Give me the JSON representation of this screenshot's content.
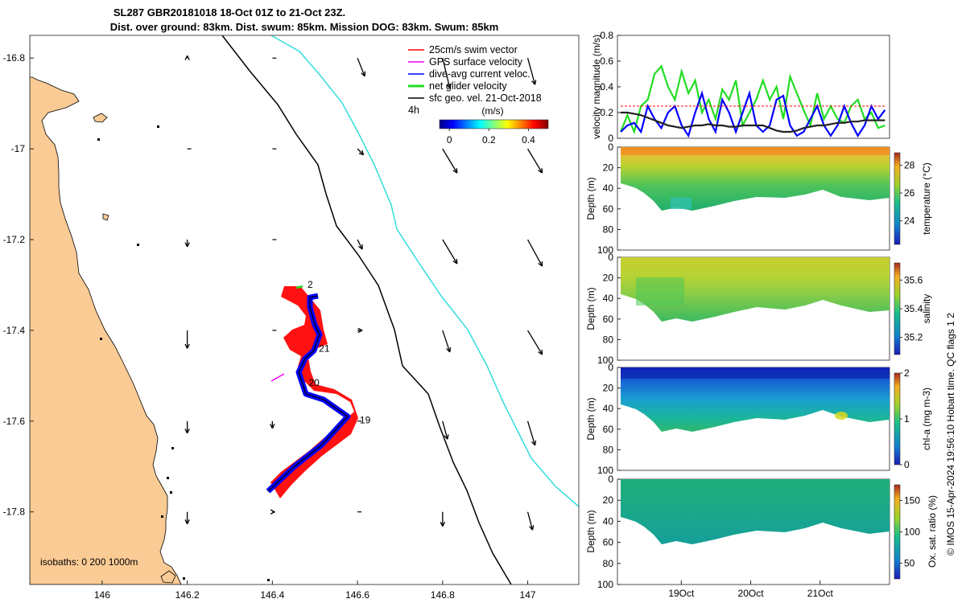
{
  "title": {
    "line1": "SL287 GBR20181018 18-Oct 01Z to 21-Oct 23Z.",
    "line2": "Dist. over ground: 83km. Dist. swum: 85km. Mission DOG: 83km. Swum: 85km"
  },
  "footer": {
    "note": "© IMOS 15-Apr-2024 19:56:10 Hobart time. QC flags 1  2"
  },
  "colors": {
    "land": "#fbcb95",
    "glider_track": "#0000ff",
    "swim_vector": "#ff0000",
    "gps_velocity": "#ff00ff",
    "net_velocity": "#22dd22",
    "geostrophic": "#000000",
    "isobath_200": "#000000",
    "isobath_1000": "#33dddd"
  },
  "chart_data": [
    {
      "id": "map",
      "type": "scatter",
      "title": "Glider track and velocity vectors",
      "xlim": [
        145.83,
        147.12
      ],
      "ylim": [
        -17.96,
        -16.75
      ],
      "xticks": [
        146,
        146.2,
        146.4,
        146.6,
        146.8,
        147
      ],
      "xtick_labels": [
        "146",
        "146.2",
        "146.4",
        "146.6",
        "146.8",
        "147"
      ],
      "yticks": [
        -16.8,
        -17,
        -17.2,
        -17.4,
        -17.6,
        -17.8
      ],
      "ytick_labels": [
        "-16.8",
        "-17",
        "-17.2",
        "-17.4",
        "-17.6",
        "-17.8"
      ],
      "legend": {
        "placement": "top-right",
        "entries": [
          "25cm/s swim vector",
          "GPS surface velocity",
          "dive-avg current veloc.",
          "net glider velocity",
          "sfc geo. vel. 21-Oct-2018"
        ],
        "time_label": "4h"
      },
      "colorbar": {
        "label": "(m/s)",
        "ticks": [
          0,
          0.2,
          0.4
        ],
        "tick_labels": [
          "0",
          "0.2",
          "0.4"
        ],
        "range": [
          -0.05,
          0.5
        ]
      },
      "isobaths_label": "isobaths: 0   200  1000m",
      "track": [
        [
          146.39,
          -17.77
        ],
        [
          146.44,
          -17.72
        ],
        [
          146.53,
          -17.65
        ],
        [
          146.58,
          -17.6
        ],
        [
          146.53,
          -17.56
        ],
        [
          146.44,
          -17.55
        ],
        [
          146.43,
          -17.49
        ],
        [
          146.48,
          -17.45
        ],
        [
          146.48,
          -17.42
        ],
        [
          146.46,
          -17.38
        ],
        [
          146.46,
          -17.33
        ],
        [
          146.48,
          -17.32
        ]
      ],
      "day_labels": [
        {
          "label": "21",
          "lon": 146.522,
          "lat": -17.447
        },
        {
          "label": "20",
          "lon": 146.498,
          "lat": -17.522
        },
        {
          "label": "19",
          "lon": 146.618,
          "lat": -17.605
        },
        {
          "label": "2",
          "lon": 146.489,
          "lat": -17.306
        }
      ],
      "geo_vectors": {
        "lons": [
          146.2,
          146.4,
          146.6,
          146.8,
          147.0
        ],
        "lats": [
          -16.8,
          -17.0,
          -17.2,
          -17.4,
          -17.6,
          -17.8
        ],
        "u": [
          [
            0.0,
            0.0,
            0.06,
            0.06,
            0.06
          ],
          [
            0.0,
            0.0,
            0.05,
            0.12,
            0.12
          ],
          [
            0.0,
            0.0,
            0.04,
            0.12,
            0.12
          ],
          [
            0.0,
            0.0,
            0.04,
            0.06,
            0.12
          ],
          [
            0.0,
            0.0,
            0.0,
            0.04,
            0.06
          ],
          [
            0.0,
            0.02,
            0.0,
            0.0,
            0.04
          ]
        ],
        "v": [
          [
            0.02,
            0.0,
            -0.15,
            -0.25,
            -0.22
          ],
          [
            0.0,
            0.0,
            -0.05,
            -0.2,
            -0.2
          ],
          [
            -0.06,
            0.0,
            -0.08,
            -0.2,
            -0.22
          ],
          [
            -0.15,
            0.0,
            0.0,
            -0.18,
            -0.2
          ],
          [
            -0.1,
            -0.06,
            0.0,
            -0.15,
            -0.2
          ],
          [
            -0.1,
            0.0,
            0.0,
            -0.12,
            -0.15
          ]
        ]
      }
    },
    {
      "id": "velocity",
      "type": "line",
      "ylabel": "velocity magnitude (m/s)",
      "ylim": [
        0,
        0.8
      ],
      "yticks": [
        0,
        0.2,
        0.4,
        0.6,
        0.8
      ],
      "ytick_labels": [
        "0",
        "0.2",
        "0.4",
        "0.6",
        "0.8"
      ],
      "x_days": [
        0.0,
        0.1,
        0.2,
        0.3,
        0.4,
        0.5,
        0.6,
        0.7,
        0.8,
        0.9,
        1.0,
        1.1,
        1.2,
        1.3,
        1.4,
        1.5,
        1.6,
        1.7,
        1.8,
        1.9,
        2.0,
        2.1,
        2.2,
        2.3,
        2.4,
        2.5,
        2.6,
        2.7,
        2.8,
        2.9,
        3.0,
        3.1,
        3.2,
        3.3,
        3.4,
        3.5,
        3.6,
        3.7,
        3.8,
        3.9
      ],
      "series": [
        {
          "name": "net glider velocity",
          "color": "#22dd22",
          "values": [
            0.05,
            0.18,
            0.05,
            0.25,
            0.3,
            0.5,
            0.56,
            0.4,
            0.3,
            0.52,
            0.35,
            0.45,
            0.2,
            0.3,
            0.15,
            0.38,
            0.3,
            0.45,
            0.1,
            0.2,
            0.3,
            0.45,
            0.3,
            0.4,
            0.15,
            0.48,
            0.35,
            0.22,
            0.1,
            0.35,
            0.15,
            0.25,
            0.15,
            0.12,
            0.25,
            0.3,
            0.15,
            0.2,
            0.08,
            0.1
          ]
        },
        {
          "name": "dive-avg current veloc.",
          "color": "#0000ff",
          "values": [
            0.05,
            0.1,
            0.12,
            0.05,
            0.25,
            0.15,
            0.08,
            0.2,
            0.25,
            0.1,
            0.02,
            0.2,
            0.35,
            0.15,
            0.05,
            0.3,
            0.2,
            0.05,
            0.2,
            0.35,
            0.1,
            0.05,
            0.1,
            0.3,
            0.33,
            0.1,
            0.02,
            0.05,
            0.15,
            0.25,
            0.1,
            0.02,
            0.1,
            0.25,
            0.12,
            0.02,
            0.1,
            0.25,
            0.15,
            0.22
          ]
        },
        {
          "name": "sfc geo. vel.",
          "color": "#222222",
          "values": [
            0.2,
            0.2,
            0.19,
            0.18,
            0.16,
            0.14,
            0.12,
            0.1,
            0.09,
            0.08,
            0.09,
            0.1,
            0.1,
            0.11,
            0.1,
            0.1,
            0.09,
            0.09,
            0.1,
            0.1,
            0.1,
            0.1,
            0.08,
            0.06,
            0.05,
            0.05,
            0.06,
            0.08,
            0.09,
            0.1,
            0.1,
            0.11,
            0.12,
            0.12,
            0.13,
            0.13,
            0.14,
            0.14,
            0.14,
            0.14
          ]
        },
        {
          "name": "25cm/s swim",
          "color": "#ff0000",
          "values": [
            0.25,
            0.25,
            0.25,
            0.25,
            0.25,
            0.25,
            0.25,
            0.25,
            0.25,
            0.25,
            0.25,
            0.25,
            0.25,
            0.25,
            0.25,
            0.25,
            0.25,
            0.25,
            0.25,
            0.25,
            0.25,
            0.25,
            0.25,
            0.25,
            0.25,
            0.25,
            0.25,
            0.25,
            0.25,
            0.25,
            0.25,
            0.25,
            0.25,
            0.25,
            0.25,
            0.25,
            0.25,
            0.25,
            0.25,
            0.25
          ]
        }
      ]
    },
    {
      "id": "temperature",
      "type": "heatmap",
      "ylabel": "Depth (m)",
      "ylim": [
        100,
        0
      ],
      "yticks": [
        0,
        20,
        40,
        60,
        80,
        100
      ],
      "ytick_labels": [
        "0",
        "20",
        "40",
        "60",
        "80",
        "100"
      ],
      "colorbar": {
        "label": "temperature (°C)",
        "range": [
          22.3,
          28.9
        ],
        "ticks": [
          24,
          26,
          28
        ],
        "tick_labels": [
          "24",
          "26",
          "28"
        ]
      }
    },
    {
      "id": "salinity",
      "type": "heatmap",
      "ylabel": "Depth (m)",
      "ylim": [
        100,
        0
      ],
      "yticks": [
        0,
        20,
        40,
        60,
        80,
        100
      ],
      "ytick_labels": [
        "0",
        "20",
        "40",
        "60",
        "80",
        "100"
      ],
      "colorbar": {
        "label": "salinity",
        "range": [
          35.08,
          35.72
        ],
        "ticks": [
          35.2,
          35.4,
          35.6
        ],
        "tick_labels": [
          "35.2",
          "35.4",
          "35.6"
        ]
      }
    },
    {
      "id": "chla",
      "type": "heatmap",
      "ylabel": "Depth (m)",
      "ylim": [
        100,
        0
      ],
      "yticks": [
        0,
        20,
        40,
        60,
        80,
        100
      ],
      "ytick_labels": [
        "0",
        "20",
        "40",
        "60",
        "80",
        "100"
      ],
      "colorbar": {
        "label": "chl-a (mg m-3)",
        "range": [
          0,
          2
        ],
        "ticks": [
          0,
          1,
          2
        ],
        "tick_labels": [
          "0",
          "1",
          "2"
        ]
      }
    },
    {
      "id": "oxygen",
      "type": "heatmap",
      "ylabel": "Depth (m)",
      "ylim": [
        100,
        0
      ],
      "yticks": [
        0,
        20,
        40,
        60,
        80,
        100
      ],
      "ytick_labels": [
        "0",
        "20",
        "40",
        "60",
        "80",
        "100"
      ],
      "xlim_days": [
        0,
        3.92
      ],
      "xticks_days": [
        0.92,
        1.92,
        2.92
      ],
      "xtick_labels": [
        "19Oct",
        "20Oct",
        "21Oct"
      ],
      "colorbar": {
        "label": "Ox. sat. ratio (%)",
        "range": [
          25,
          175
        ],
        "ticks": [
          50,
          100,
          150
        ],
        "tick_labels": [
          "50",
          "100",
          "150"
        ]
      }
    }
  ]
}
